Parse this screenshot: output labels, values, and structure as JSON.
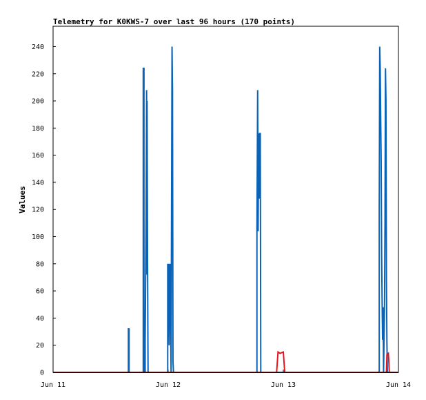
{
  "chart_data": {
    "type": "line",
    "title": "Telemetry for K0KWS-7 over last 96 hours (170 points)",
    "xlabel": "",
    "ylabel": "Values",
    "x_ticks": [
      "Jun 11",
      "Jun 12",
      "Jun 13",
      "Jun 14"
    ],
    "xlim": [
      0,
      72
    ],
    "ylim": [
      0,
      255
    ],
    "y_ticks": [
      0,
      20,
      40,
      60,
      80,
      100,
      120,
      140,
      160,
      180,
      200,
      220,
      240
    ],
    "grid": false,
    "series": [
      {
        "color": "#0b63b8",
        "points": [
          [
            0,
            0
          ],
          [
            15.7,
            0
          ],
          [
            15.7,
            32
          ],
          [
            15.85,
            32
          ],
          [
            15.85,
            0
          ],
          [
            18.8,
            0
          ],
          [
            18.8,
            224
          ],
          [
            18.95,
            224
          ],
          [
            18.95,
            0
          ],
          [
            19.2,
            0
          ],
          [
            19.2,
            24
          ],
          [
            19.3,
            72
          ],
          [
            19.4,
            120
          ],
          [
            19.5,
            208
          ],
          [
            19.55,
            72
          ],
          [
            19.6,
            200
          ],
          [
            19.7,
            80
          ],
          [
            19.8,
            0
          ],
          [
            23.9,
            0
          ],
          [
            23.9,
            80
          ],
          [
            24.0,
            40
          ],
          [
            24.1,
            80
          ],
          [
            24.2,
            20
          ],
          [
            24.3,
            60
          ],
          [
            24.4,
            80
          ],
          [
            24.5,
            40
          ],
          [
            24.6,
            0
          ],
          [
            24.7,
            120
          ],
          [
            24.8,
            240
          ],
          [
            24.9,
            208
          ],
          [
            25.0,
            8
          ],
          [
            25.1,
            0
          ],
          [
            42.5,
            0
          ],
          [
            42.5,
            104
          ],
          [
            42.65,
            208
          ],
          [
            42.75,
            104
          ],
          [
            42.85,
            176
          ],
          [
            42.95,
            128
          ],
          [
            43.05,
            176
          ],
          [
            43.2,
            176
          ],
          [
            43.3,
            0
          ],
          [
            68.0,
            0
          ],
          [
            68.0,
            120
          ],
          [
            68.1,
            240
          ],
          [
            68.2,
            224
          ],
          [
            68.3,
            188
          ],
          [
            68.4,
            156
          ],
          [
            68.5,
            86
          ],
          [
            68.6,
            52
          ],
          [
            68.7,
            24
          ],
          [
            68.8,
            48
          ],
          [
            68.9,
            0
          ],
          [
            69.0,
            24
          ],
          [
            69.1,
            48
          ],
          [
            69.2,
            112
          ],
          [
            69.3,
            224
          ],
          [
            69.4,
            200
          ],
          [
            69.5,
            68
          ],
          [
            69.6,
            22
          ],
          [
            69.7,
            0
          ],
          [
            70.5,
            0
          ],
          [
            72,
            0
          ]
        ]
      },
      {
        "color": "#e8141c",
        "points": [
          [
            0,
            0
          ],
          [
            46.6,
            0
          ],
          [
            46.9,
            15
          ],
          [
            47.3,
            14
          ],
          [
            48.0,
            15
          ],
          [
            48.3,
            0
          ],
          [
            69.5,
            0
          ],
          [
            69.6,
            13
          ],
          [
            69.9,
            14
          ],
          [
            70.0,
            8
          ],
          [
            70.1,
            0
          ],
          [
            72,
            0
          ]
        ]
      },
      {
        "color": "#000000",
        "points": [
          [
            0,
            0
          ],
          [
            15,
            0
          ],
          [
            70.5,
            0
          ],
          [
            72,
            0
          ]
        ]
      }
    ]
  }
}
